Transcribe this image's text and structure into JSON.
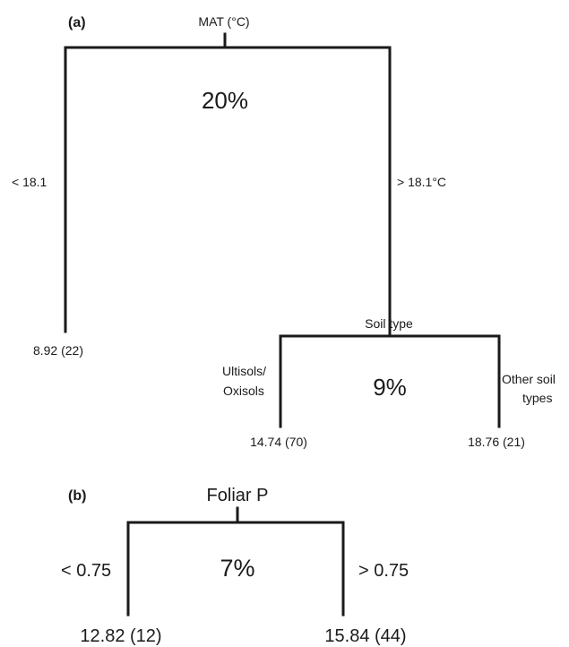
{
  "panel_a": {
    "panel_label": "(a)",
    "root_split": "MAT (°C)",
    "root_variance": "20%",
    "left_branch": "< 18.1",
    "right_branch": "> 18.1°C",
    "left_leaf": "8.92 (22)",
    "sub_split": "Soil type",
    "sub_variance": "9%",
    "sub_left_branch_line1": "Ultisols/",
    "sub_left_branch_line2": "Oxisols",
    "sub_right_branch_line1": "Other soil",
    "sub_right_branch_line2": "types",
    "sub_left_leaf": "14.74 (70)",
    "sub_right_leaf": "18.76 (21)"
  },
  "panel_b": {
    "panel_label": "(b)",
    "root_split": "Foliar P",
    "root_variance": "7%",
    "left_branch": "< 0.75",
    "right_branch": "> 0.75",
    "left_leaf": "12.82 (12)",
    "right_leaf": "15.84 (44)"
  },
  "colors": {
    "ink": "#1a1a1a",
    "background": "#ffffff"
  }
}
